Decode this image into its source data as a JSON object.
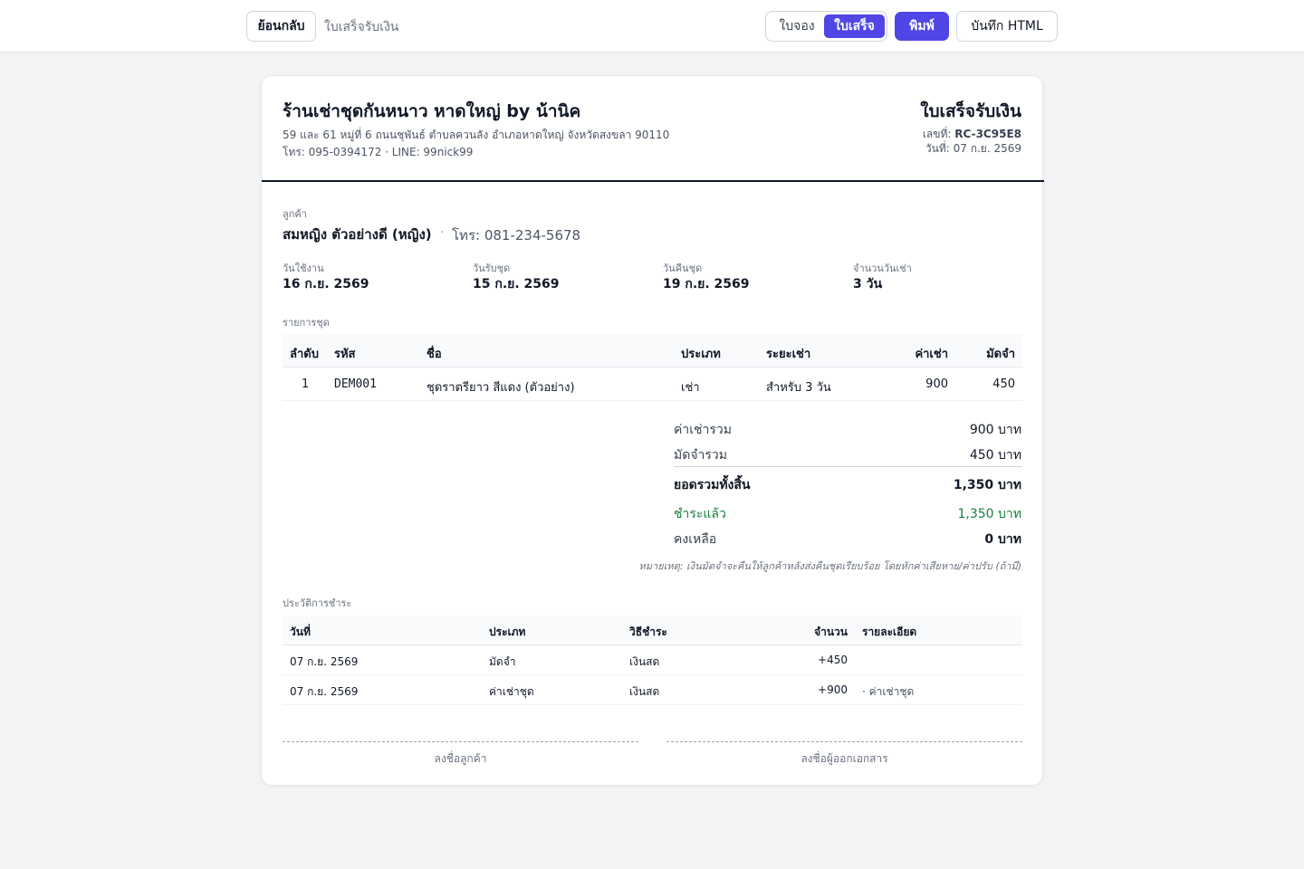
{
  "toolbar": {
    "back_label": "ย้อนกลับ",
    "page_title": "ใบเสร็จรับเงิน",
    "tab_booking": "ใบจอง",
    "tab_receipt": "ใบเสร็จ",
    "print_label": "พิมพ์",
    "save_html_label": "บันทึก HTML",
    "accent_color": "#4f46e5"
  },
  "shop": {
    "name": "ร้านเช่าชุดกันหนาว หาดใหญ่ by น้านิค",
    "address": "59 และ 61 หมู่ที่ 6 ถนนชุพันธ์ ตำบลควนลัง อำเภอหาดใหญ่ จังหวัดสงขลา 90110",
    "contact": "โทร: 095-0394172 · LINE: 99nick99"
  },
  "document": {
    "title": "ใบเสร็จรับเงิน",
    "number_label": "เลขที่:",
    "number": "RC-3C95E8",
    "date_text": "วันที่: 07 ก.ย. 2569"
  },
  "customer": {
    "label": "ลูกค้า",
    "name": "สมหญิง ตัวอย่างดี (หญิง)",
    "separator": "·",
    "phone": "โทร: 081-234-5678"
  },
  "info": [
    {
      "label": "วันใช้งาน",
      "value": "16 ก.ย. 2569"
    },
    {
      "label": "วันรับชุด",
      "value": "15 ก.ย. 2569"
    },
    {
      "label": "วันคืนชุด",
      "value": "19 ก.ย. 2569"
    },
    {
      "label": "จำนวนวันเช่า",
      "value": "3 วัน"
    }
  ],
  "items": {
    "label": "รายการชุด",
    "headers": {
      "no": "ลำดับ",
      "code": "รหัส",
      "name": "ชื่อ",
      "type": "ประเภท",
      "period": "ระยะเช่า",
      "rent": "ค่าเช่า",
      "deposit": "มัดจำ"
    },
    "rows": [
      {
        "no": "1",
        "code": "DEM001",
        "name": "ชุดราตรียาว สีแดง (ตัวอย่าง)",
        "type": "เช่า",
        "period": "สำหรับ 3 วัน",
        "rent": "900",
        "deposit": "450"
      }
    ]
  },
  "summary": {
    "rent_total_label": "ค่าเช่ารวม",
    "rent_total": "900 บาท",
    "deposit_total_label": "มัดจำรวม",
    "deposit_total": "450 บาท",
    "grand_total_label": "ยอดรวมทั้งสิ้น",
    "grand_total": "1,350 บาท",
    "paid_label": "ชำระแล้ว",
    "paid": "1,350 บาท",
    "balance_label": "คงเหลือ",
    "balance": "0 บาท",
    "paid_color": "#15803d",
    "note": "หมายเหตุ: เงินมัดจำจะคืนให้ลูกค้าหลังส่งคืนชุดเรียบร้อย โดยหักค่าเสียหาย/ค่าปรับ (ถ้ามี)"
  },
  "history": {
    "label": "ประวัติการชำระ",
    "headers": {
      "date": "วันที่",
      "type": "ประเภท",
      "method": "วิธีชำระ",
      "amount": "จำนวน",
      "detail": "รายละเอียด"
    },
    "rows": [
      {
        "date": "07 ก.ย. 2569",
        "type": "มัดจำ",
        "method": "เงินสด",
        "amount": "+450",
        "detail": ""
      },
      {
        "date": "07 ก.ย. 2569",
        "type": "ค่าเช่าชุด",
        "method": "เงินสด",
        "amount": "+900",
        "detail": "· ค่าเช่าชุด"
      }
    ]
  },
  "signatures": {
    "customer": "ลงชื่อลูกค้า",
    "issuer": "ลงชื่อผู้ออกเอกสาร"
  }
}
